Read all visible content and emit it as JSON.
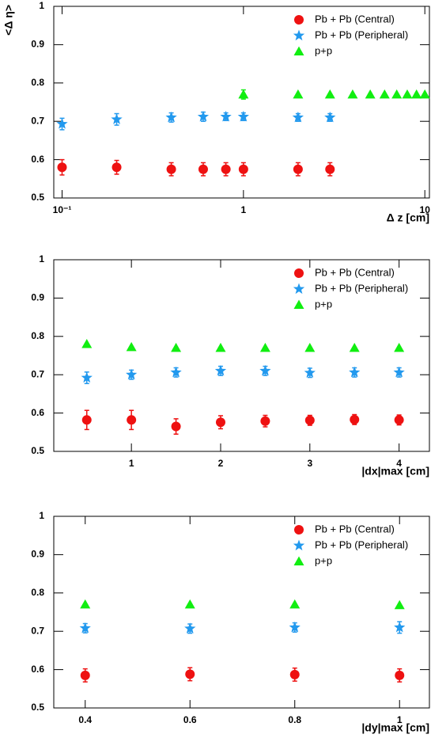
{
  "chart_data": [
    {
      "type": "scatter",
      "y_label": "<Δ η>",
      "x_label": "Δ z [cm]",
      "xscale": "log",
      "xlim": [
        0.09,
        10.6
      ],
      "xticks": [
        {
          "value": 0.1,
          "label": "10⁻¹"
        },
        1,
        10
      ],
      "ylim": [
        0.5,
        1
      ],
      "yticks": [
        0.5,
        0.6,
        0.7,
        0.8,
        0.9,
        1
      ],
      "legend": "upper right",
      "series": [
        {
          "name": "Pb + Pb (Central)",
          "color": "#ee1111",
          "marker": "circle",
          "x": [
            0.1,
            0.2,
            0.4,
            0.6,
            0.8,
            1,
            2,
            3
          ],
          "values": [
            0.58,
            0.58,
            0.575,
            0.575,
            0.575,
            0.575,
            0.575,
            0.575
          ],
          "errors": [
            0.02,
            0.018,
            0.017,
            0.017,
            0.017,
            0.017,
            0.017,
            0.017
          ]
        },
        {
          "name": "Pb + Pb (Peripheral)",
          "color": "#2299ee",
          "marker": "star",
          "x": [
            0.1,
            0.2,
            0.4,
            0.6,
            0.8,
            1,
            2,
            3
          ],
          "values": [
            0.693,
            0.705,
            0.71,
            0.712,
            0.712,
            0.712,
            0.71,
            0.71
          ],
          "errors": [
            0.015,
            0.015,
            0.012,
            0.012,
            0.01,
            0.01,
            0.01,
            0.01
          ]
        },
        {
          "name": "p+p",
          "color": "#11ee11",
          "marker": "triangle",
          "x": [
            1,
            2,
            3,
            4,
            5,
            6,
            7,
            8,
            9,
            10
          ],
          "values": [
            0.77,
            0.77,
            0.77,
            0.77,
            0.77,
            0.77,
            0.77,
            0.77,
            0.77,
            0.77
          ],
          "errors": [
            0.012,
            0,
            0,
            0,
            0,
            0,
            0,
            0,
            0,
            0
          ]
        }
      ]
    },
    {
      "type": "scatter",
      "x_label": "|dx|max [cm]",
      "xscale": "linear",
      "xlim": [
        0.13,
        4.34
      ],
      "xticks": [
        1,
        2,
        3,
        4
      ],
      "ylim": [
        0.5,
        1
      ],
      "yticks": [
        0.5,
        0.6,
        0.7,
        0.8,
        0.9,
        1
      ],
      "legend": "upper right",
      "series": [
        {
          "name": "Pb + Pb (Central)",
          "color": "#ee1111",
          "marker": "circle",
          "x": [
            0.5,
            1,
            1.5,
            2,
            2.5,
            3,
            3.5,
            4
          ],
          "values": [
            0.582,
            0.582,
            0.565,
            0.576,
            0.579,
            0.581,
            0.583,
            0.582
          ],
          "errors": [
            0.025,
            0.025,
            0.02,
            0.017,
            0.015,
            0.013,
            0.013,
            0.013
          ]
        },
        {
          "name": "Pb + Pb (Peripheral)",
          "color": "#2299ee",
          "marker": "star",
          "x": [
            0.5,
            1,
            1.5,
            2,
            2.5,
            3,
            3.5,
            4
          ],
          "values": [
            0.692,
            0.7,
            0.706,
            0.71,
            0.71,
            0.705,
            0.706,
            0.706
          ],
          "errors": [
            0.015,
            0.012,
            0.012,
            0.012,
            0.012,
            0.012,
            0.012,
            0.012
          ]
        },
        {
          "name": "p+p",
          "color": "#11ee11",
          "marker": "triangle",
          "x": [
            0.5,
            1,
            1.5,
            2,
            2.5,
            3,
            3.5,
            4
          ],
          "values": [
            0.78,
            0.772,
            0.77,
            0.77,
            0.77,
            0.77,
            0.77,
            0.77
          ],
          "errors": [
            0,
            0,
            0,
            0,
            0,
            0,
            0,
            0
          ]
        }
      ]
    },
    {
      "type": "scatter",
      "x_label": "|dy|max [cm]",
      "xscale": "linear",
      "xlim": [
        0.34,
        1.057
      ],
      "xticks": [
        0.4,
        0.6,
        0.8,
        1
      ],
      "ylim": [
        0.5,
        1
      ],
      "yticks": [
        0.5,
        0.6,
        0.7,
        0.8,
        0.9,
        1
      ],
      "legend": "upper right",
      "series": [
        {
          "name": "Pb + Pb (Central)",
          "color": "#ee1111",
          "marker": "circle",
          "x": [
            0.4,
            0.6,
            0.8,
            1
          ],
          "values": [
            0.585,
            0.588,
            0.587,
            0.585
          ],
          "errors": [
            0.017,
            0.017,
            0.017,
            0.017
          ]
        },
        {
          "name": "Pb + Pb (Peripheral)",
          "color": "#2299ee",
          "marker": "star",
          "x": [
            0.4,
            0.6,
            0.8,
            1
          ],
          "values": [
            0.708,
            0.707,
            0.71,
            0.71
          ],
          "errors": [
            0.012,
            0.012,
            0.012,
            0.015
          ]
        },
        {
          "name": "p+p",
          "color": "#11ee11",
          "marker": "triangle",
          "x": [
            0.4,
            0.6,
            0.8,
            1
          ],
          "values": [
            0.77,
            0.77,
            0.77,
            0.768
          ],
          "errors": [
            0,
            0,
            0,
            0
          ]
        }
      ]
    }
  ]
}
